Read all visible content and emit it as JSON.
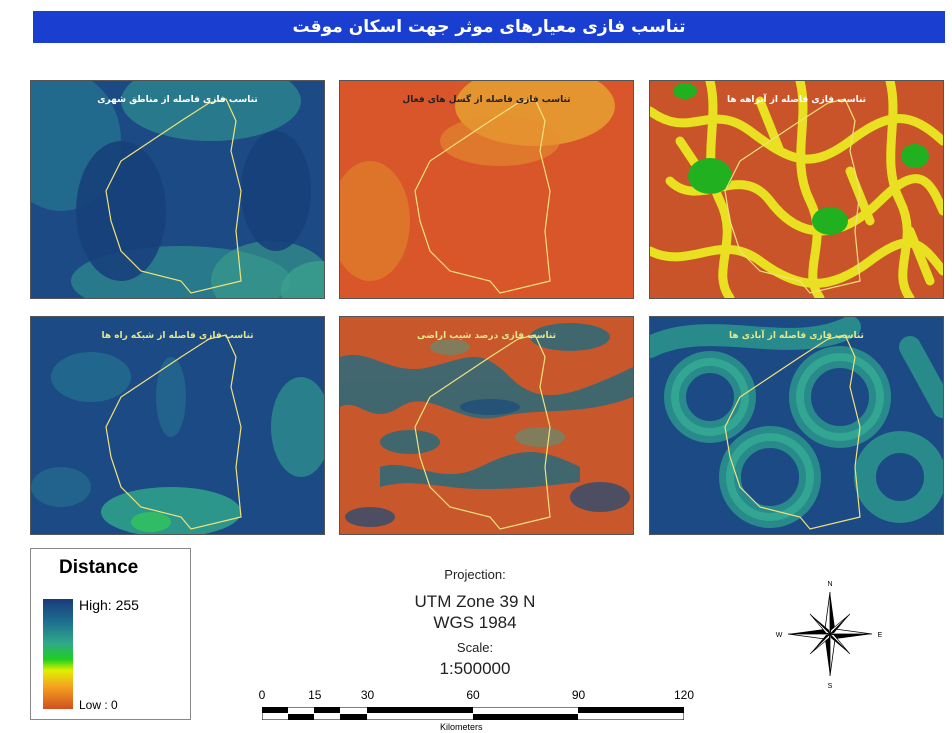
{
  "title": "تناسب فازی معیارهای موثر جهت اسکان موقت",
  "panels": [
    {
      "title": "تناسب فازی فاصله از مناطق شهری",
      "ramp": "blue"
    },
    {
      "title": "تناسب فازی فاصله از گسل های فعال",
      "ramp": "orange"
    },
    {
      "title": "تناسب فازی فاصله از آبراهه ها",
      "ramp": "streams"
    },
    {
      "title": "تناسب فازی فاصله از شبکه راه ها",
      "ramp": "blue"
    },
    {
      "title": "تناسب فازی درصد شیب اراضی",
      "ramp": "slope"
    },
    {
      "title": "تناسب فازی فاصله از آبادی ها",
      "ramp": "blue"
    }
  ],
  "legend": {
    "title": "Distance",
    "high_label": "High: 255",
    "low_label": "Low : 0",
    "colors": [
      "#1a3a7a",
      "#2fa88a",
      "#20d020",
      "#e0f000",
      "#f5a020",
      "#d05020"
    ]
  },
  "projection": {
    "heading": "Projection:",
    "zone": "UTM Zone 39 N",
    "datum": "WGS 1984",
    "scale_heading": "Scale:",
    "scale": "1:500000"
  },
  "scalebar": {
    "ticks": [
      "0",
      "15",
      "30",
      "60",
      "90",
      "120"
    ],
    "tick_values": [
      0,
      15,
      30,
      60,
      90,
      120
    ],
    "unit": "Kilometers"
  },
  "compass": {
    "n": "N",
    "s": "S",
    "e": "E",
    "w": "W"
  }
}
